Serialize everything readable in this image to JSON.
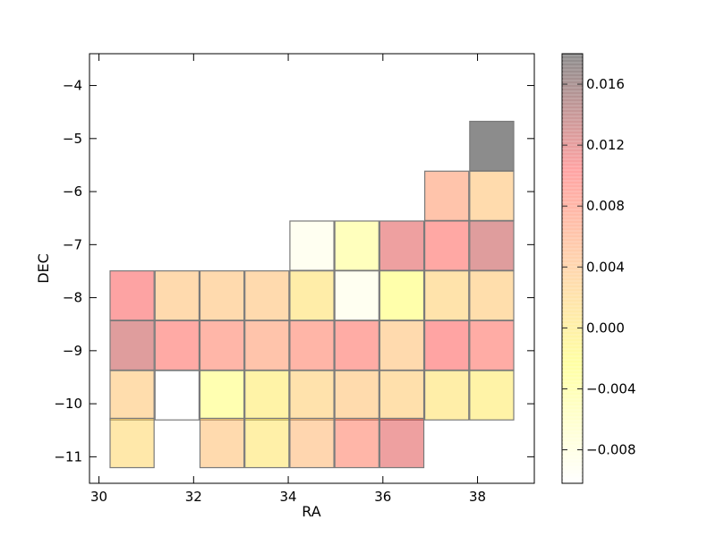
{
  "chart_data": {
    "type": "heatmap",
    "xlabel": "RA",
    "ylabel": "DEC",
    "xlim": [
      29.8,
      39.2
    ],
    "ylim": [
      -11.5,
      -3.4
    ],
    "xticks": [
      30,
      32,
      34,
      36,
      38
    ],
    "xtick_labels": [
      "30",
      "32",
      "34",
      "36",
      "38"
    ],
    "yticks": [
      -4,
      -5,
      -6,
      -7,
      -8,
      -9,
      -10,
      -11
    ],
    "ytick_labels": [
      "−4",
      "−5",
      "−6",
      "−7",
      "−8",
      "−9",
      "−10",
      "−11"
    ],
    "colorbar": {
      "range": [
        -0.0102,
        0.018
      ],
      "ticks": [
        -0.008,
        -0.004,
        0.0,
        0.004,
        0.008,
        0.012,
        0.016
      ],
      "tick_labels": [
        "−0.008",
        "−0.004",
        "0.000",
        "0.004",
        "0.008",
        "0.012",
        "0.016"
      ],
      "colormap": [
        "#ffffff",
        "#ffff33",
        "#ffa64d",
        "#ff3333",
        "#000000"
      ],
      "alpha": 0.4
    },
    "cells": [
      {
        "ra": 30.7,
        "dec": -7.96,
        "value": 0.0105
      },
      {
        "ra": 31.65,
        "dec": -7.96,
        "value": 0.0034
      },
      {
        "ra": 32.6,
        "dec": -7.96,
        "value": 0.0034
      },
      {
        "ra": 33.55,
        "dec": -7.96,
        "value": 0.0034
      },
      {
        "ra": 34.5,
        "dec": -7.96,
        "value": 0.0005
      },
      {
        "ra": 35.45,
        "dec": -7.96,
        "value": -0.009
      },
      {
        "ra": 36.4,
        "dec": -7.96,
        "value": -0.003
      },
      {
        "ra": 37.35,
        "dec": -7.96,
        "value": 0.002
      },
      {
        "ra": 38.3,
        "dec": -7.96,
        "value": 0.0028
      },
      {
        "ra": 30.7,
        "dec": -8.9,
        "value": 0.0125
      },
      {
        "ra": 31.65,
        "dec": -8.9,
        "value": 0.0095
      },
      {
        "ra": 32.6,
        "dec": -8.9,
        "value": 0.008
      },
      {
        "ra": 33.55,
        "dec": -8.9,
        "value": 0.0062
      },
      {
        "ra": 34.5,
        "dec": -8.9,
        "value": 0.0082
      },
      {
        "ra": 35.45,
        "dec": -8.9,
        "value": 0.0092
      },
      {
        "ra": 36.4,
        "dec": -8.9,
        "value": 0.0035
      },
      {
        "ra": 37.35,
        "dec": -8.9,
        "value": 0.0102
      },
      {
        "ra": 38.3,
        "dec": -8.9,
        "value": 0.0092
      },
      {
        "ra": 30.7,
        "dec": -9.84,
        "value": 0.003
      },
      {
        "ra": 31.65,
        "dec": -9.84,
        "value": -0.0102
      },
      {
        "ra": 32.6,
        "dec": -9.84,
        "value": -0.0035
      },
      {
        "ra": 33.55,
        "dec": -9.84,
        "value": -0.0005
      },
      {
        "ra": 34.5,
        "dec": -9.84,
        "value": 0.0022
      },
      {
        "ra": 35.45,
        "dec": -9.84,
        "value": 0.0033
      },
      {
        "ra": 36.4,
        "dec": -9.84,
        "value": 0.0025
      },
      {
        "ra": 37.35,
        "dec": -9.84,
        "value": 0.0003
      },
      {
        "ra": 38.3,
        "dec": -9.84,
        "value": -0.0005
      },
      {
        "ra": 30.7,
        "dec": -10.74,
        "value": 0.0012
      },
      {
        "ra": 32.6,
        "dec": -10.74,
        "value": 0.0035
      },
      {
        "ra": 33.55,
        "dec": -10.74,
        "value": 0.0
      },
      {
        "ra": 34.5,
        "dec": -10.74,
        "value": 0.004
      },
      {
        "ra": 35.45,
        "dec": -10.74,
        "value": 0.008
      },
      {
        "ra": 36.4,
        "dec": -10.74,
        "value": 0.0115
      },
      {
        "ra": 34.5,
        "dec": -7.02,
        "value": -0.009
      },
      {
        "ra": 35.45,
        "dec": -7.02,
        "value": -0.0045
      },
      {
        "ra": 36.4,
        "dec": -7.02,
        "value": 0.0115
      },
      {
        "ra": 37.35,
        "dec": -7.02,
        "value": 0.0098
      },
      {
        "ra": 38.3,
        "dec": -7.02,
        "value": 0.0125
      },
      {
        "ra": 37.35,
        "dec": -6.08,
        "value": 0.0062
      },
      {
        "ra": 38.3,
        "dec": -6.08,
        "value": 0.0032
      },
      {
        "ra": 38.3,
        "dec": -5.14,
        "value": 0.018
      }
    ]
  }
}
